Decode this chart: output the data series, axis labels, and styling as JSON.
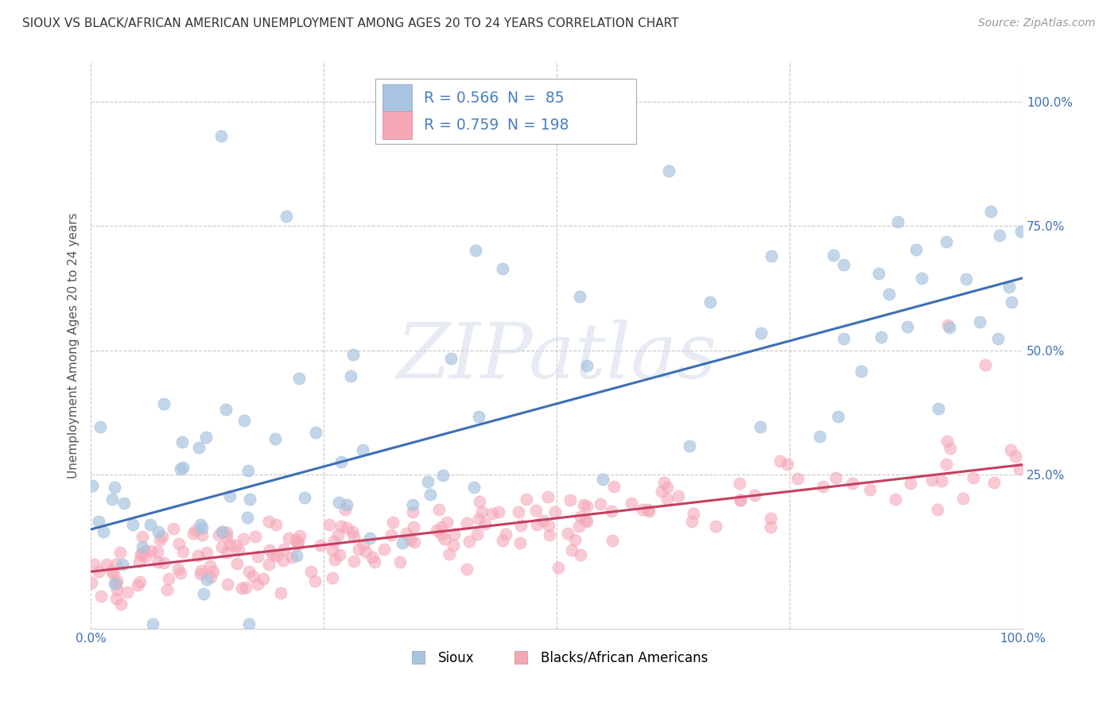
{
  "title": "SIOUX VS BLACK/AFRICAN AMERICAN UNEMPLOYMENT AMONG AGES 20 TO 24 YEARS CORRELATION CHART",
  "source": "Source: ZipAtlas.com",
  "ylabel": "Unemployment Among Ages 20 to 24 years",
  "xmin": 0.0,
  "xmax": 1.0,
  "ymin": -0.06,
  "ymax": 1.08,
  "sioux_R": 0.566,
  "sioux_N": 85,
  "black_R": 0.759,
  "black_N": 198,
  "sioux_color": "#a8c4e0",
  "black_color": "#f5a8b8",
  "sioux_line_color": "#3d6fb5",
  "black_line_color": "#c44060",
  "watermark": "ZIPatlas",
  "xtick_labels_edge": [
    "0.0%",
    "100.0%"
  ],
  "xtick_vals_edge": [
    0.0,
    1.0
  ],
  "xtick_vals_grid": [
    0.0,
    0.25,
    0.5,
    0.75,
    1.0
  ],
  "ytick_labels": [
    "25.0%",
    "50.0%",
    "75.0%",
    "100.0%"
  ],
  "ytick_vals": [
    0.25,
    0.5,
    0.75,
    1.0
  ],
  "sioux_legend": "Sioux",
  "black_legend": "Blacks/African Americans",
  "background_color": "#ffffff",
  "grid_color": "#c8c8c8",
  "legend_text_color": "#4a7fc1",
  "sioux_trend_start": 0.14,
  "sioux_trend_end": 0.645,
  "black_trend_start": 0.055,
  "black_trend_end": 0.27
}
